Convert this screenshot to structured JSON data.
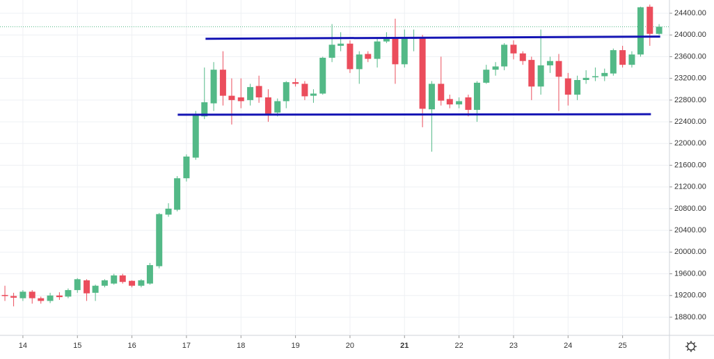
{
  "chart_data": {
    "type": "candlestick",
    "x": [
      13.67,
      13.83,
      14,
      14.17,
      14.33,
      14.5,
      14.67,
      14.83,
      15,
      15.17,
      15.33,
      15.5,
      15.67,
      15.83,
      16,
      16.17,
      16.33,
      16.5,
      16.67,
      16.83,
      17,
      17.17,
      17.33,
      17.5,
      17.67,
      17.83,
      18,
      18.17,
      18.33,
      18.5,
      18.67,
      18.83,
      19,
      19.17,
      19.33,
      19.5,
      19.67,
      19.83,
      20,
      20.17,
      20.33,
      20.5,
      20.67,
      20.83,
      21,
      21.17,
      21.33,
      21.5,
      21.67,
      21.83,
      22,
      22.17,
      22.33,
      22.5,
      22.67,
      22.83,
      23,
      23.17,
      23.33,
      23.5,
      23.67,
      23.83,
      24,
      24.17,
      24.33,
      24.5,
      24.67,
      24.83,
      25,
      25.17,
      25.33,
      25.5,
      25.67
    ],
    "open": [
      19210,
      19190,
      19150,
      19270,
      19150,
      19100,
      19200,
      19180,
      19300,
      19480,
      19250,
      19380,
      19420,
      19570,
      19470,
      19380,
      19420,
      19740,
      20690,
      20780,
      21360,
      21740,
      22500,
      22740,
      23360,
      22880,
      22850,
      22800,
      23060,
      22850,
      22570,
      22780,
      23130,
      23100,
      22880,
      22920,
      23580,
      23800,
      23840,
      23370,
      23650,
      23560,
      23880,
      23960,
      23460,
      23930,
      23950,
      22630,
      23100,
      22820,
      22720,
      22850,
      22620,
      23120,
      23360,
      23420,
      23820,
      23660,
      23540,
      23050,
      23440,
      23520,
      23200,
      22900,
      23170,
      23220,
      23240,
      23290,
      23720,
      23450,
      23640,
      24520,
      24020
    ],
    "high": [
      19380,
      19250,
      19300,
      19300,
      19180,
      19250,
      19260,
      19330,
      19520,
      19500,
      19400,
      19500,
      19600,
      19600,
      19480,
      19500,
      19800,
      20720,
      20900,
      21400,
      21800,
      22600,
      23400,
      23500,
      23700,
      23200,
      23200,
      23100,
      23250,
      23000,
      22830,
      23150,
      23200,
      23150,
      23000,
      23600,
      24200,
      24050,
      23900,
      23700,
      23700,
      23950,
      24050,
      24300,
      24100,
      24100,
      24000,
      23150,
      23600,
      22900,
      22850,
      22900,
      23150,
      23450,
      23500,
      23850,
      23900,
      23700,
      23600,
      24100,
      23600,
      23650,
      23300,
      23250,
      23350,
      23400,
      23380,
      23750,
      23800,
      23700,
      24520,
      24560,
      24200
    ],
    "low": [
      19100,
      19000,
      19100,
      19050,
      19050,
      19060,
      19120,
      19150,
      19250,
      19100,
      19100,
      19350,
      19400,
      19420,
      19350,
      19350,
      19400,
      19700,
      20650,
      20750,
      21300,
      21700,
      22450,
      22600,
      22700,
      22350,
      22650,
      22700,
      22750,
      22400,
      22500,
      22650,
      23050,
      22800,
      22750,
      22900,
      23500,
      23700,
      23300,
      23100,
      23500,
      23400,
      23850,
      23100,
      23400,
      23700,
      22300,
      21850,
      22700,
      22650,
      22650,
      22500,
      22400,
      23100,
      23250,
      23350,
      23550,
      23450,
      22800,
      22900,
      23300,
      22600,
      22700,
      22800,
      23100,
      23150,
      23150,
      23250,
      23400,
      23400,
      23600,
      23800,
      24000
    ],
    "close": [
      19190,
      19160,
      19270,
      19150,
      19100,
      19200,
      19170,
      19300,
      19500,
      19240,
      19380,
      19480,
      19570,
      19450,
      19380,
      19480,
      19760,
      20700,
      20800,
      21360,
      21760,
      22530,
      22760,
      23360,
      22880,
      22800,
      22780,
      23040,
      22850,
      22550,
      22780,
      23130,
      23100,
      22870,
      22920,
      23580,
      23820,
      23840,
      23370,
      23640,
      23560,
      23880,
      23950,
      23460,
      23950,
      23960,
      22640,
      23100,
      22790,
      22720,
      22780,
      22620,
      23120,
      23360,
      23420,
      23820,
      23660,
      23520,
      23050,
      23440,
      23520,
      23230,
      22900,
      23170,
      23210,
      23240,
      23300,
      23720,
      23450,
      23640,
      24510,
      24020,
      24150
    ],
    "up_color": "#53b987",
    "down_color": "#eb4d5c",
    "xlim": [
      13.58,
      25.86
    ],
    "xticks": [
      14,
      15,
      16,
      17,
      18,
      19,
      20,
      21,
      22,
      23,
      24,
      25
    ],
    "xtick_bold": [
      21
    ],
    "ylim": [
      18466,
      24644
    ],
    "yticks": [
      {
        "value": 18800,
        "label": "18800.00"
      },
      {
        "value": 19200,
        "label": "19200.00"
      },
      {
        "value": 19600,
        "label": "19600.00"
      },
      {
        "value": 20000,
        "label": "20000.00"
      },
      {
        "value": 20400,
        "label": "20400.00"
      },
      {
        "value": 20800,
        "label": "20800.00"
      },
      {
        "value": 21200,
        "label": "21200.00"
      },
      {
        "value": 21600,
        "label": "21600.00"
      },
      {
        "value": 22000,
        "label": "22000.00"
      },
      {
        "value": 22400,
        "label": "22400.00"
      },
      {
        "value": 22800,
        "label": "22800.00"
      },
      {
        "value": 23200,
        "label": "23200.00"
      },
      {
        "value": 23600,
        "label": "23600.00"
      },
      {
        "value": 24000,
        "label": "24000.00"
      },
      {
        "value": 24400,
        "label": "24400.00"
      }
    ],
    "grid": true,
    "price_line": 24150,
    "trendlines": [
      {
        "x": [
          17.35,
          25.69
        ],
        "y": [
          23930,
          23970
        ],
        "color": "#1414b4"
      },
      {
        "x": [
          16.84,
          25.52
        ],
        "y": [
          22530,
          22540
        ],
        "color": "#1414b4"
      }
    ]
  }
}
